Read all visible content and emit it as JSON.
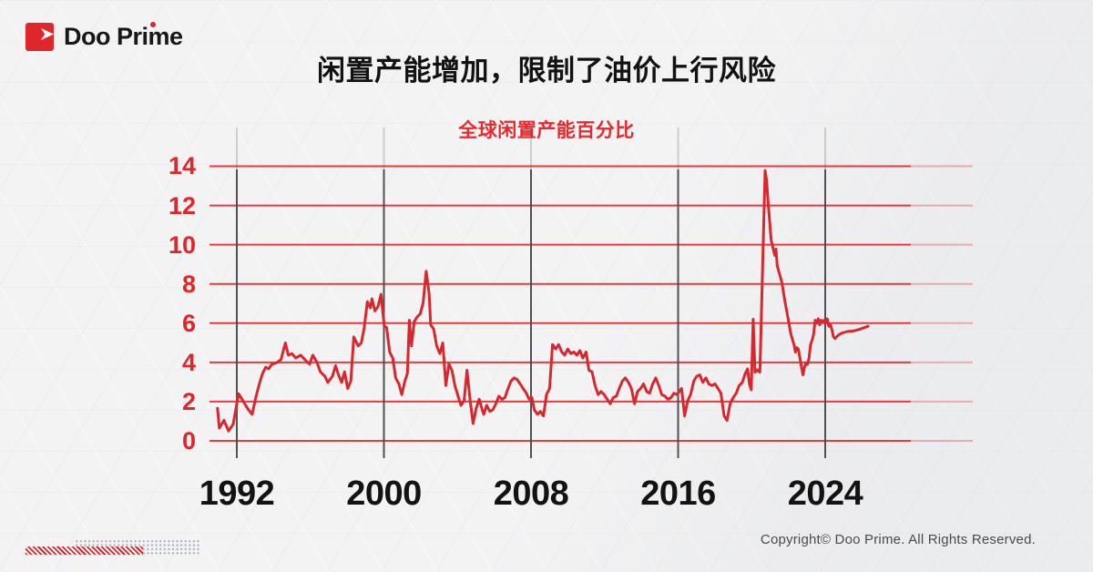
{
  "brand": {
    "logo_text": "Doo Prime"
  },
  "header": {
    "title": "闲置产能增加，限制了油价上行风险"
  },
  "colors": {
    "brand_red": "#e0262b",
    "line_red": "#d8282e",
    "grid_red": "#e23337",
    "axis_label_red": "#e0262b",
    "x_label_dark": "#131313",
    "vertical_line_gray": "#48484b",
    "copyright_gray": "#4a4a4a"
  },
  "chart_data": {
    "type": "line",
    "title": "全球闲置产能百分比",
    "xlabel": "",
    "ylabel": "",
    "ylim": [
      0,
      14
    ],
    "xlim": [
      1990.5,
      2026.6
    ],
    "y_ticks": [
      0,
      2,
      4,
      6,
      8,
      10,
      12,
      14
    ],
    "x_ticks": [
      1992,
      2000,
      2008,
      2016,
      2024
    ],
    "grid": "horizontal-red, vertical-dark-at-ticks",
    "legend_position": "none",
    "series": [
      {
        "name": "全球闲置产能百分比",
        "points": [
          [
            1990.95,
            1.66
          ],
          [
            1991.05,
            0.65
          ],
          [
            1991.3,
            1.05
          ],
          [
            1991.55,
            0.5
          ],
          [
            1991.8,
            0.85
          ],
          [
            1992.1,
            2.4
          ],
          [
            1992.33,
            2.05
          ],
          [
            1992.58,
            1.66
          ],
          [
            1992.83,
            1.35
          ],
          [
            1993.05,
            2.28
          ],
          [
            1993.25,
            2.98
          ],
          [
            1993.4,
            3.44
          ],
          [
            1993.57,
            3.75
          ],
          [
            1993.73,
            3.67
          ],
          [
            1993.9,
            3.9
          ],
          [
            1994.15,
            3.98
          ],
          [
            1994.4,
            4.14
          ],
          [
            1994.64,
            4.99
          ],
          [
            1994.8,
            4.37
          ],
          [
            1995.0,
            4.45
          ],
          [
            1995.2,
            4.22
          ],
          [
            1995.47,
            4.37
          ],
          [
            1995.7,
            4.14
          ],
          [
            1995.96,
            3.91
          ],
          [
            1996.13,
            4.37
          ],
          [
            1996.37,
            3.98
          ],
          [
            1996.54,
            3.52
          ],
          [
            1996.79,
            3.29
          ],
          [
            1996.95,
            2.98
          ],
          [
            1997.2,
            3.29
          ],
          [
            1997.37,
            3.83
          ],
          [
            1997.53,
            3.36
          ],
          [
            1997.7,
            2.98
          ],
          [
            1997.86,
            3.52
          ],
          [
            1998.03,
            2.67
          ],
          [
            1998.2,
            3.05
          ],
          [
            1998.36,
            5.3
          ],
          [
            1998.6,
            4.84
          ],
          [
            1998.77,
            4.99
          ],
          [
            1998.93,
            5.77
          ],
          [
            1999.1,
            7.09
          ],
          [
            1999.26,
            6.78
          ],
          [
            1999.35,
            7.24
          ],
          [
            1999.51,
            6.62
          ],
          [
            1999.68,
            6.85
          ],
          [
            1999.84,
            7.47
          ],
          [
            2000.02,
            5.84
          ],
          [
            2000.15,
            5.77
          ],
          [
            2000.31,
            4.53
          ],
          [
            2000.48,
            4.22
          ],
          [
            2000.64,
            3.21
          ],
          [
            2000.81,
            2.9
          ],
          [
            2000.97,
            2.36
          ],
          [
            2001.14,
            3.05
          ],
          [
            2001.28,
            3.44
          ],
          [
            2001.38,
            6.15
          ],
          [
            2001.5,
            4.84
          ],
          [
            2001.65,
            6.08
          ],
          [
            2001.8,
            6.31
          ],
          [
            2001.97,
            6.47
          ],
          [
            2002.13,
            7.01
          ],
          [
            2002.3,
            8.64
          ],
          [
            2002.46,
            7.47
          ],
          [
            2002.54,
            5.92
          ],
          [
            2002.71,
            5.69
          ],
          [
            2002.87,
            4.84
          ],
          [
            2003.04,
            4.45
          ],
          [
            2003.2,
            4.99
          ],
          [
            2003.37,
            2.82
          ],
          [
            2003.53,
            3.91
          ],
          [
            2003.7,
            3.6
          ],
          [
            2003.86,
            2.82
          ],
          [
            2004.03,
            2.28
          ],
          [
            2004.19,
            1.81
          ],
          [
            2004.36,
            2.05
          ],
          [
            2004.52,
            3.6
          ],
          [
            2004.69,
            2.05
          ],
          [
            2004.85,
            0.88
          ],
          [
            2005.02,
            1.66
          ],
          [
            2005.18,
            2.12
          ],
          [
            2005.35,
            1.58
          ],
          [
            2005.43,
            1.35
          ],
          [
            2005.59,
            1.81
          ],
          [
            2005.76,
            1.5
          ],
          [
            2005.92,
            1.58
          ],
          [
            2006.09,
            1.89
          ],
          [
            2006.25,
            2.28
          ],
          [
            2006.42,
            2.12
          ],
          [
            2006.58,
            2.2
          ],
          [
            2006.75,
            2.67
          ],
          [
            2006.91,
            3.05
          ],
          [
            2007.08,
            3.21
          ],
          [
            2007.24,
            3.13
          ],
          [
            2007.41,
            2.9
          ],
          [
            2007.57,
            2.67
          ],
          [
            2007.74,
            2.43
          ],
          [
            2007.9,
            2.12
          ],
          [
            2008.05,
            2.2
          ],
          [
            2008.18,
            1.58
          ],
          [
            2008.35,
            1.35
          ],
          [
            2008.51,
            1.5
          ],
          [
            2008.68,
            1.27
          ],
          [
            2008.84,
            2.36
          ],
          [
            2009.01,
            2.67
          ],
          [
            2009.17,
            4.91
          ],
          [
            2009.34,
            4.68
          ],
          [
            2009.5,
            4.91
          ],
          [
            2009.67,
            4.53
          ],
          [
            2009.83,
            4.37
          ],
          [
            2010.0,
            4.68
          ],
          [
            2010.16,
            4.45
          ],
          [
            2010.33,
            4.53
          ],
          [
            2010.49,
            4.37
          ],
          [
            2010.66,
            4.6
          ],
          [
            2010.82,
            4.22
          ],
          [
            2010.99,
            4.53
          ],
          [
            2011.15,
            3.6
          ],
          [
            2011.32,
            3.52
          ],
          [
            2011.48,
            2.82
          ],
          [
            2011.65,
            2.36
          ],
          [
            2011.81,
            2.51
          ],
          [
            2011.98,
            2.36
          ],
          [
            2012.14,
            2.12
          ],
          [
            2012.31,
            1.89
          ],
          [
            2012.47,
            2.2
          ],
          [
            2012.64,
            2.28
          ],
          [
            2012.8,
            2.67
          ],
          [
            2012.97,
            3.05
          ],
          [
            2013.13,
            3.21
          ],
          [
            2013.3,
            2.98
          ],
          [
            2013.46,
            2.67
          ],
          [
            2013.63,
            1.89
          ],
          [
            2013.79,
            2.51
          ],
          [
            2013.96,
            2.67
          ],
          [
            2014.12,
            2.9
          ],
          [
            2014.29,
            2.51
          ],
          [
            2014.45,
            2.43
          ],
          [
            2014.62,
            2.9
          ],
          [
            2014.78,
            3.21
          ],
          [
            2014.95,
            2.82
          ],
          [
            2015.11,
            2.36
          ],
          [
            2015.28,
            2.28
          ],
          [
            2015.44,
            2.12
          ],
          [
            2015.61,
            2.2
          ],
          [
            2015.77,
            2.43
          ],
          [
            2015.94,
            2.36
          ],
          [
            2016.19,
            2.67
          ],
          [
            2016.35,
            1.27
          ],
          [
            2016.52,
            2.05
          ],
          [
            2016.68,
            2.36
          ],
          [
            2016.85,
            3.05
          ],
          [
            2017.01,
            3.29
          ],
          [
            2017.18,
            3.36
          ],
          [
            2017.34,
            2.98
          ],
          [
            2017.51,
            3.21
          ],
          [
            2017.67,
            2.9
          ],
          [
            2017.84,
            2.82
          ],
          [
            2018.0,
            2.9
          ],
          [
            2018.17,
            2.67
          ],
          [
            2018.33,
            2.43
          ],
          [
            2018.5,
            1.27
          ],
          [
            2018.66,
            1.04
          ],
          [
            2018.83,
            1.89
          ],
          [
            2018.99,
            2.2
          ],
          [
            2019.16,
            2.43
          ],
          [
            2019.32,
            2.82
          ],
          [
            2019.49,
            2.98
          ],
          [
            2019.65,
            3.44
          ],
          [
            2019.78,
            3.67
          ],
          [
            2019.88,
            2.9
          ],
          [
            2019.98,
            2.6
          ],
          [
            2020.08,
            6.2
          ],
          [
            2020.18,
            3.5
          ],
          [
            2020.32,
            3.62
          ],
          [
            2020.45,
            3.5
          ],
          [
            2020.73,
            13.78
          ],
          [
            2020.81,
            13.3
          ],
          [
            2020.9,
            12.1
          ],
          [
            2020.98,
            11.2
          ],
          [
            2021.06,
            10.25
          ],
          [
            2021.19,
            9.7
          ],
          [
            2021.26,
            9.45
          ],
          [
            2021.32,
            9.78
          ],
          [
            2021.39,
            8.93
          ],
          [
            2021.64,
            8.08
          ],
          [
            2021.8,
            7.15
          ],
          [
            2021.97,
            6.3
          ],
          [
            2022.13,
            5.45
          ],
          [
            2022.3,
            4.91
          ],
          [
            2022.38,
            4.52
          ],
          [
            2022.46,
            4.75
          ],
          [
            2022.54,
            4.67
          ],
          [
            2022.63,
            4.21
          ],
          [
            2022.71,
            3.75
          ],
          [
            2022.79,
            3.36
          ],
          [
            2022.87,
            3.75
          ],
          [
            2022.96,
            3.98
          ],
          [
            2023.04,
            3.9
          ],
          [
            2023.12,
            4.21
          ],
          [
            2023.2,
            4.91
          ],
          [
            2023.29,
            5.14
          ],
          [
            2023.37,
            5.45
          ],
          [
            2023.45,
            6.15
          ],
          [
            2023.53,
            5.99
          ],
          [
            2023.62,
            6.22
          ],
          [
            2023.7,
            5.91
          ],
          [
            2023.78,
            6.15
          ],
          [
            2023.86,
            6.07
          ],
          [
            2023.95,
            6.15
          ],
          [
            2024.03,
            5.99
          ],
          [
            2024.11,
            6.22
          ],
          [
            2024.2,
            5.84
          ],
          [
            2024.28,
            5.91
          ],
          [
            2024.36,
            5.68
          ],
          [
            2024.45,
            5.3
          ],
          [
            2024.53,
            5.22
          ],
          [
            2024.69,
            5.37
          ],
          [
            2024.86,
            5.48
          ],
          [
            2025.19,
            5.57
          ],
          [
            2025.52,
            5.6
          ],
          [
            2025.85,
            5.68
          ],
          [
            2026.18,
            5.79
          ],
          [
            2026.33,
            5.84
          ]
        ]
      }
    ]
  },
  "footer": {
    "copyright": "Copyright© Doo Prime. All Rights Reserved."
  }
}
